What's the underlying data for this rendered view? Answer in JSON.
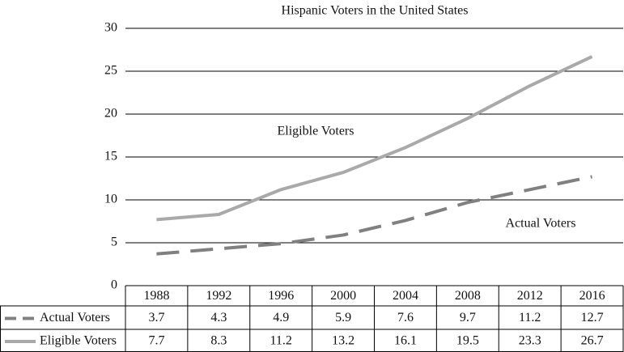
{
  "chart_data": {
    "type": "line",
    "title": "Hispanic Voters in the United States",
    "categories": [
      "1988",
      "1992",
      "1996",
      "2000",
      "2004",
      "2008",
      "2012",
      "2016"
    ],
    "series": [
      {
        "name": "Actual Voters",
        "color": "#808080",
        "style": "dashed",
        "values": [
          3.7,
          4.3,
          4.9,
          5.9,
          7.6,
          9.7,
          11.2,
          12.7
        ]
      },
      {
        "name": "Eligible Voters",
        "color": "#a9a9a9",
        "style": "solid",
        "values": [
          7.7,
          8.3,
          11.2,
          13.2,
          16.1,
          19.5,
          23.3,
          26.7
        ]
      }
    ],
    "annotations": [
      "Eligible Voters",
      "Actual Voters"
    ],
    "ylim": [
      0,
      30
    ],
    "yticks": [
      0,
      5,
      10,
      15,
      20,
      25,
      30
    ],
    "grid": true,
    "data_table": true
  }
}
